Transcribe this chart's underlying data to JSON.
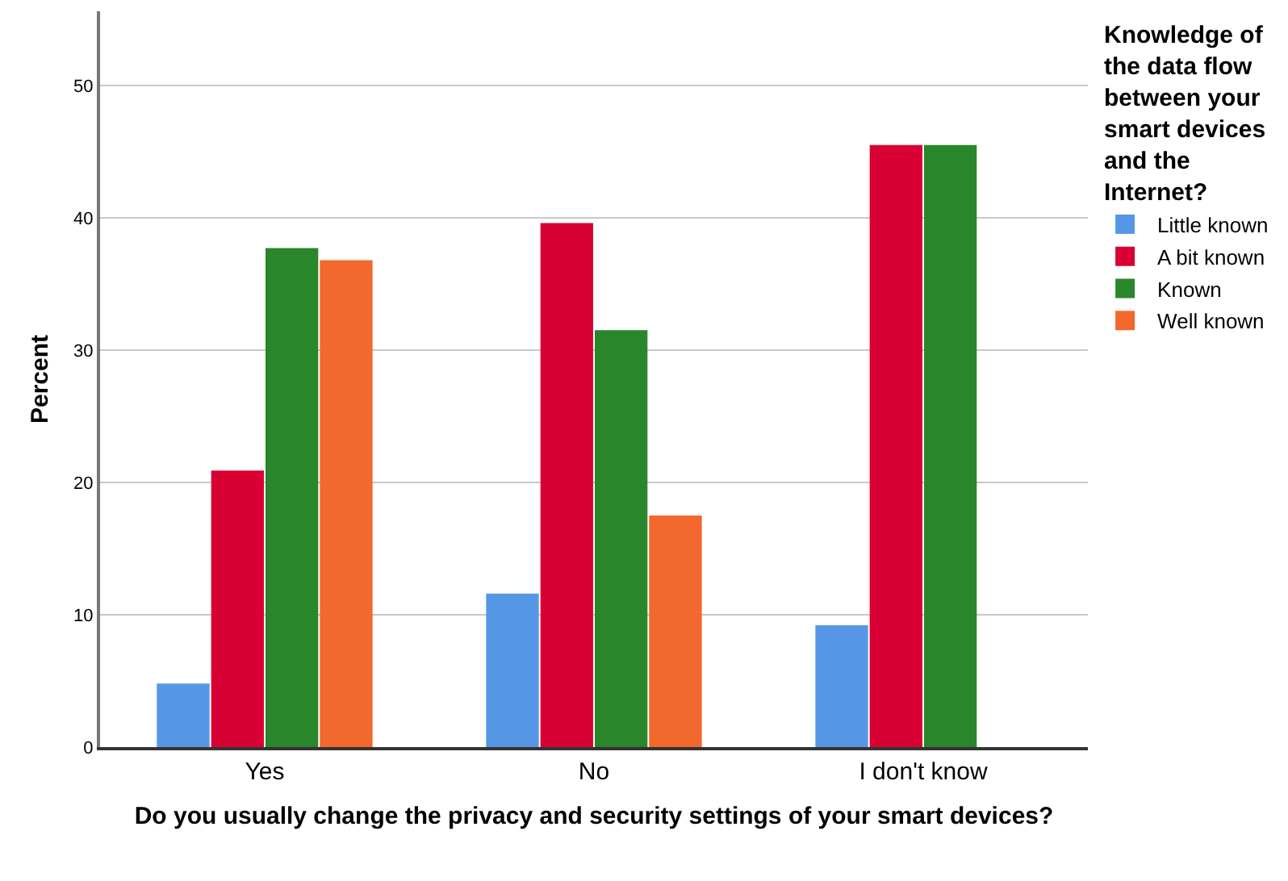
{
  "chart_data": {
    "type": "bar",
    "xlabel": "Do you usually change the privacy and security settings of your smart devices?",
    "ylabel": "Percent",
    "legend_title": "Knowledge of the data flow between your smart devices and the Internet?",
    "categories": [
      "Yes",
      "No",
      "I don't know"
    ],
    "series": [
      {
        "name": "Little known",
        "color": "#5597e5",
        "values": [
          4.8,
          11.6,
          9.2
        ]
      },
      {
        "name": "A bit known",
        "color": "#d90033",
        "values": [
          20.9,
          39.6,
          45.5
        ]
      },
      {
        "name": "Known",
        "color": "#29862b",
        "values": [
          37.7,
          31.5,
          45.5
        ]
      },
      {
        "name": "Well known",
        "color": "#f2682d",
        "values": [
          36.8,
          17.5,
          0
        ]
      }
    ],
    "ylim": [
      0,
      55.6
    ],
    "yticks": [
      0,
      10,
      20,
      30,
      40,
      50
    ],
    "grid": "y",
    "legend": "right"
  }
}
